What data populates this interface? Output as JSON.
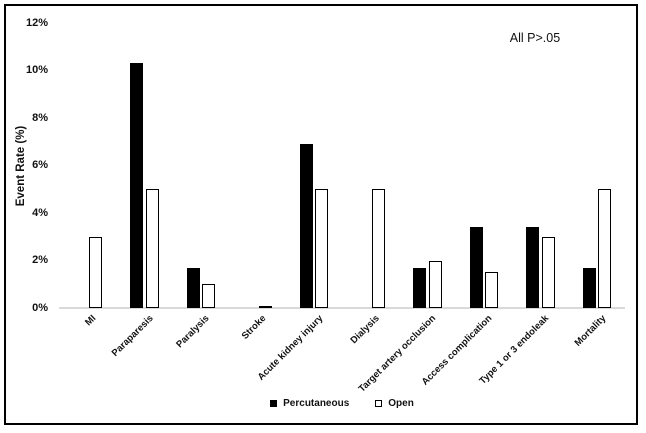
{
  "annotation": "All P>.05",
  "colors": {
    "bar_fill": "#000000",
    "bar_outline": "#000000",
    "open_bar_fill": "#ffffff",
    "axis_line": "#d9d9d9",
    "text": "#111111",
    "frame_border": "#000000",
    "background": "#ffffff"
  },
  "chart_data": {
    "type": "bar",
    "title": "",
    "xlabel": "",
    "ylabel": "Event Rate (%)",
    "ylim": [
      0,
      12
    ],
    "ytick_step": 2,
    "ytick_labels": [
      "0%",
      "2%",
      "4%",
      "6%",
      "8%",
      "10%",
      "12%"
    ],
    "grid": false,
    "legend_position": "bottom",
    "annotation": "All P>.05",
    "categories": [
      "MI",
      "Paraparesis",
      "Paralysis",
      "Stroke",
      "Acute kidney injury",
      "Dialysis",
      "Target artery occlusion",
      "Access complication",
      "Type 1 or 3 endoleak",
      "Mortality"
    ],
    "series": [
      {
        "name": "Percutaneous",
        "fill": "#000000",
        "outlined": false,
        "values": [
          0,
          10.3,
          1.7,
          0,
          6.9,
          0,
          1.7,
          3.4,
          3.4,
          1.7
        ]
      },
      {
        "name": "Open",
        "fill": "#ffffff",
        "outlined": true,
        "values": [
          3.0,
          5.0,
          1.0,
          0.1,
          5.0,
          5.0,
          2.0,
          1.5,
          3.0,
          5.0
        ]
      }
    ]
  },
  "legend": {
    "items": [
      {
        "label": "Percutaneous",
        "marker": "filled-square-icon"
      },
      {
        "label": "Open",
        "marker": "open-square-icon"
      }
    ]
  }
}
